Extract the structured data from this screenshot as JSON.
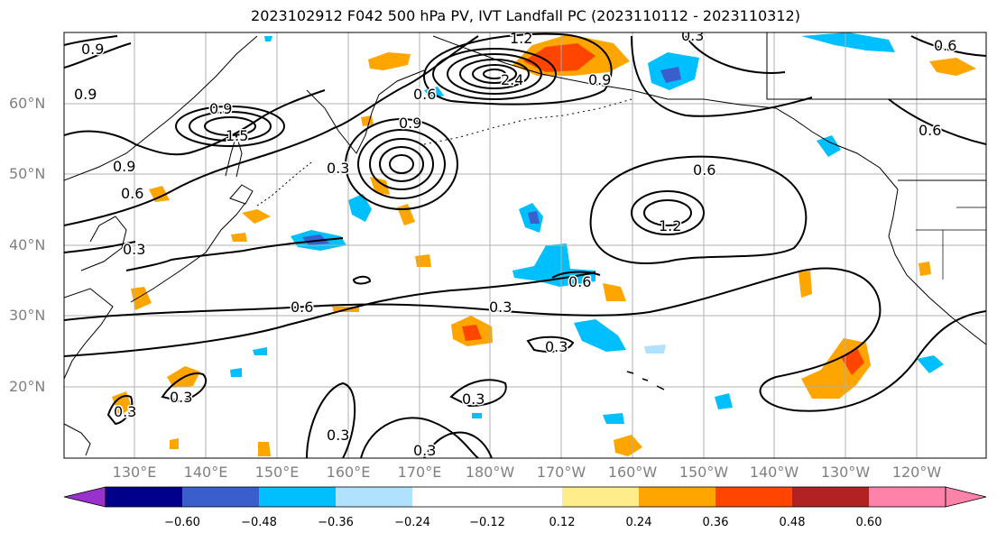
{
  "title": "2023102912 F042 500 hPa PV, IVT Landfall PC (2023110112 - 2023110312)",
  "map": {
    "lat_labels": [
      "60°N",
      "50°N",
      "40°N",
      "30°N",
      "20°N"
    ],
    "lon_labels": [
      "130°E",
      "140°E",
      "150°E",
      "160°E",
      "170°E",
      "180°W",
      "170°W",
      "160°W",
      "150°W",
      "140°W",
      "130°W",
      "120°W"
    ],
    "contour_labels": [
      "0.9",
      "0.9",
      "0.9",
      "0.6",
      "0.3",
      "0.9",
      "1.5",
      "0.3",
      "0.9",
      "1.2",
      "2.4",
      "0.6",
      "0.9",
      "0.3",
      "0.6",
      "0.6",
      "0.6",
      "1.2",
      "0.6",
      "0.6",
      "0.3",
      "0.3",
      "0.3",
      "0.3",
      "0.3",
      "0.3",
      "0.3"
    ]
  },
  "colorbar": {
    "colors": [
      "#9932cc",
      "#00008b",
      "#3a5fcd",
      "#00bfff",
      "#b0e2ff",
      "#ffffff",
      "#ffec8b",
      "#ffa500",
      "#ff4500",
      "#b22222",
      "#ff82ab"
    ],
    "tick_labels": [
      "−0.60",
      "−0.48",
      "−0.36",
      "−0.24",
      "−0.12",
      "0.12",
      "0.24",
      "0.36",
      "0.48",
      "0.60"
    ]
  }
}
